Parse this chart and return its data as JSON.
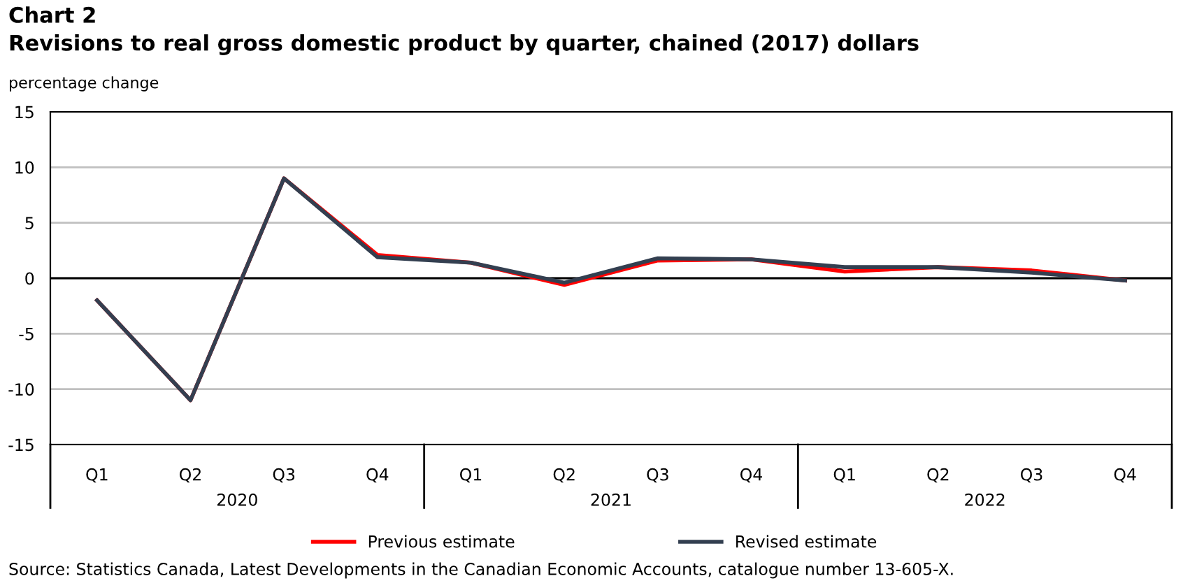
{
  "chart_data": {
    "type": "line",
    "title": "Chart 2",
    "subtitle": "Revisions to real gross domestic product by quarter, chained (2017) dollars",
    "ylabel": "percentage change",
    "categories": [
      "Q1",
      "Q2",
      "Q3",
      "Q4",
      "Q1",
      "Q2",
      "Q3",
      "Q4",
      "Q1",
      "Q2",
      "Q3",
      "Q4"
    ],
    "series": [
      {
        "name": "Previous estimate",
        "color": "#ff0000",
        "values": [
          -2.0,
          -11.0,
          9.0,
          2.1,
          1.4,
          -0.6,
          1.6,
          1.7,
          0.6,
          1.0,
          0.7,
          -0.2
        ]
      },
      {
        "name": "Revised estimate",
        "color": "#333f50",
        "values": [
          -2.0,
          -11.0,
          9.0,
          1.9,
          1.4,
          -0.4,
          1.8,
          1.7,
          1.0,
          1.0,
          0.5,
          -0.2
        ]
      }
    ],
    "ylim": [
      -15,
      15
    ],
    "yticks": [
      -15,
      -10,
      -5,
      0,
      5,
      10,
      15
    ],
    "grid": "y",
    "legend": "bottom",
    "marker": "none",
    "line_style": "solid",
    "ref_lines": [
      {
        "axis": "y",
        "value": 0,
        "color": "#000000"
      }
    ],
    "annotations": [
      "2020",
      "2021",
      "2022",
      "Source: Statistics Canada, Latest Developments in the Canadian Economic Accounts, catalogue number 13-605-X."
    ]
  }
}
